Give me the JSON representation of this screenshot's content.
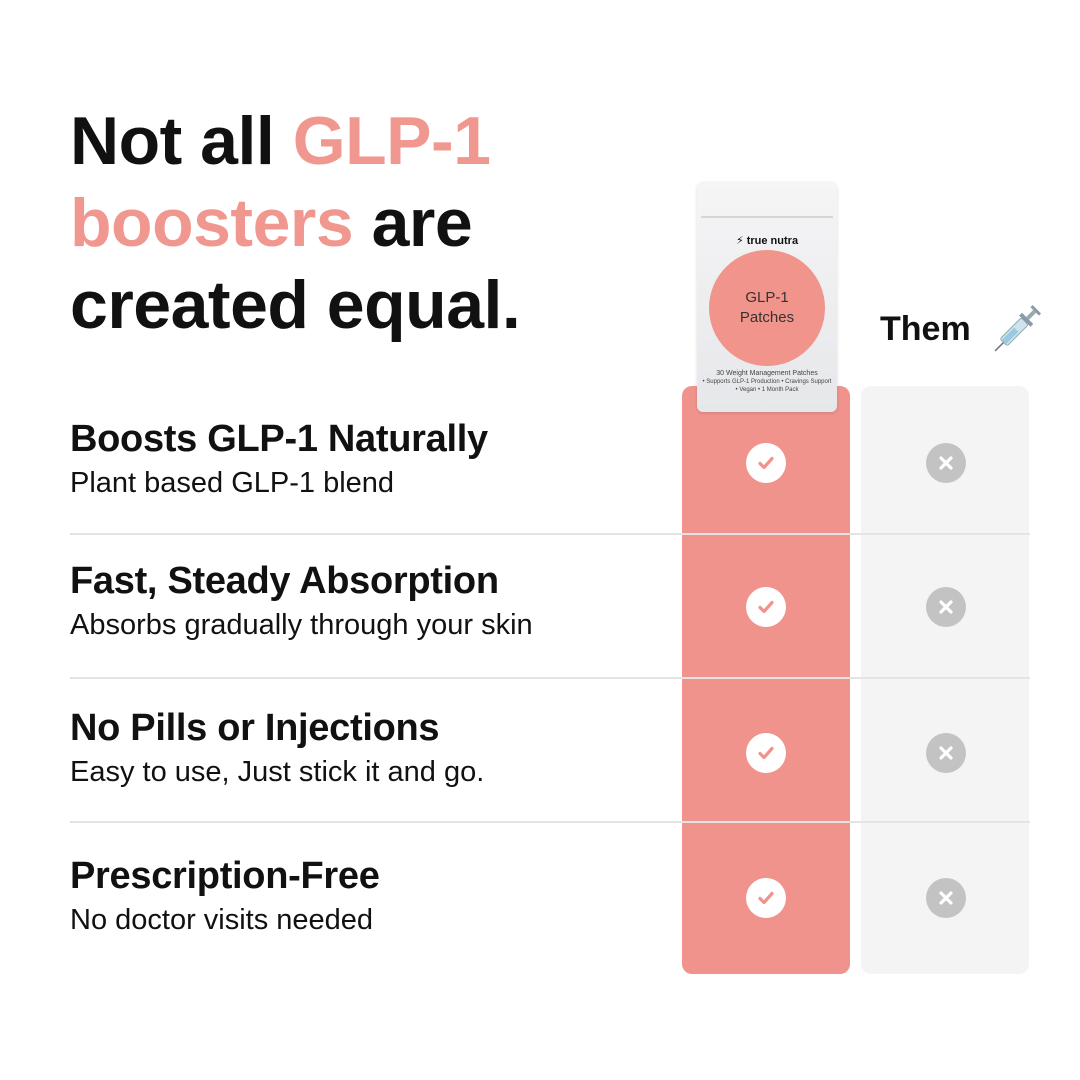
{
  "headline": {
    "part1": "Not all ",
    "accent": "GLP-1 boosters",
    "part2": " are created equal."
  },
  "colors": {
    "accent": "#f0978f",
    "us_column": "#f0938c",
    "them_column": "#f4f4f4",
    "x_icon": "#c3c3c3"
  },
  "product": {
    "brand": "true nutra",
    "name_line1": "GLP-1",
    "name_line2": "Patches",
    "subtitle": "30 Weight Management Patches",
    "bullets1": "• Supports GLP-1 Production  • Cravings Support",
    "bullets2": "• Vegan  • 1 Month Pack"
  },
  "them_label": "Them",
  "rows": [
    {
      "title": "Boosts GLP-1 Naturally",
      "subtitle": "Plant based GLP-1 blend",
      "us": "check-icon",
      "them": "x-icon"
    },
    {
      "title": "Fast, Steady Absorption",
      "subtitle": "Absorbs gradually through your skin",
      "us": "check-icon",
      "them": "x-icon"
    },
    {
      "title": "No Pills or Injections",
      "subtitle": "Easy to use, Just stick it and go.",
      "us": "check-icon",
      "them": "x-icon"
    },
    {
      "title": "Prescription-Free",
      "subtitle": "No doctor visits needed",
      "us": "check-icon",
      "them": "x-icon"
    }
  ]
}
